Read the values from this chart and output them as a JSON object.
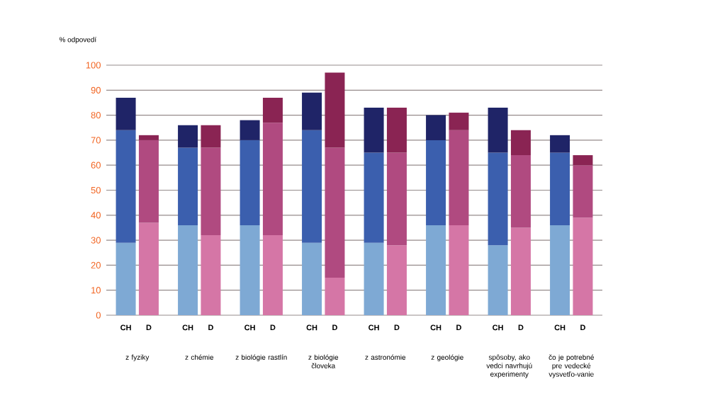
{
  "chart_data": {
    "type": "bar",
    "stacked": true,
    "ylabel": "% odpovedí",
    "categories": [
      "CH",
      "D",
      "CH",
      "D",
      "CH",
      "D",
      "CH",
      "D",
      "CH",
      "D",
      "CH",
      "D",
      "CH",
      "D",
      "CH",
      "D"
    ],
    "series": [
      {
        "colors": [
          "#7ea9d4",
          "#d576a6",
          "#7ea9d4",
          "#d576a6",
          "#7ea9d4",
          "#d576a6",
          "#7ea9d4",
          "#d576a6",
          "#7ea9d4",
          "#d576a6",
          "#7ea9d4",
          "#d576a6",
          "#7ea9d4",
          "#d576a6",
          "#7ea9d4",
          "#d576a6"
        ],
        "values": [
          29,
          37,
          36,
          32,
          36,
          32,
          29,
          15,
          29,
          28,
          36,
          36,
          28,
          35,
          36,
          39
        ]
      },
      {
        "colors": [
          "#3b5fae",
          "#b04a80",
          "#3b5fae",
          "#b04a80",
          "#3b5fae",
          "#b04a80",
          "#3b5fae",
          "#b04a80",
          "#3b5fae",
          "#b04a80",
          "#3b5fae",
          "#b04a80",
          "#3b5fae",
          "#b04a80",
          "#3b5fae",
          "#b04a80"
        ],
        "values": [
          45,
          33,
          31,
          35,
          34,
          45,
          45,
          52,
          36,
          37,
          34,
          38,
          37,
          29,
          29,
          21
        ]
      },
      {
        "colors": [
          "#1f2467",
          "#8a2453",
          "#1f2467",
          "#8a2453",
          "#1f2467",
          "#8a2453",
          "#1f2467",
          "#8a2453",
          "#1f2467",
          "#8a2453",
          "#1f2467",
          "#8a2453",
          "#1f2467",
          "#8a2453",
          "#1f2467",
          "#8a2453"
        ],
        "values": [
          13,
          2,
          9,
          9,
          8,
          10,
          15,
          30,
          18,
          18,
          10,
          7,
          18,
          10,
          7,
          4
        ]
      }
    ],
    "ylim": [
      0,
      100
    ],
    "yticks": [
      0,
      10,
      20,
      30,
      40,
      50,
      60,
      70,
      80,
      90,
      100
    ],
    "grid": "y",
    "annotations": [
      "z fyziky",
      "z chémie",
      "z biológie rastlín",
      "z biológie človeka",
      "z astronómie",
      "z geológie",
      "spôsoby, ako vedci navrhujú experimenty",
      "čo je potrebné pre vedecké vysvetľo-vanie"
    ]
  }
}
